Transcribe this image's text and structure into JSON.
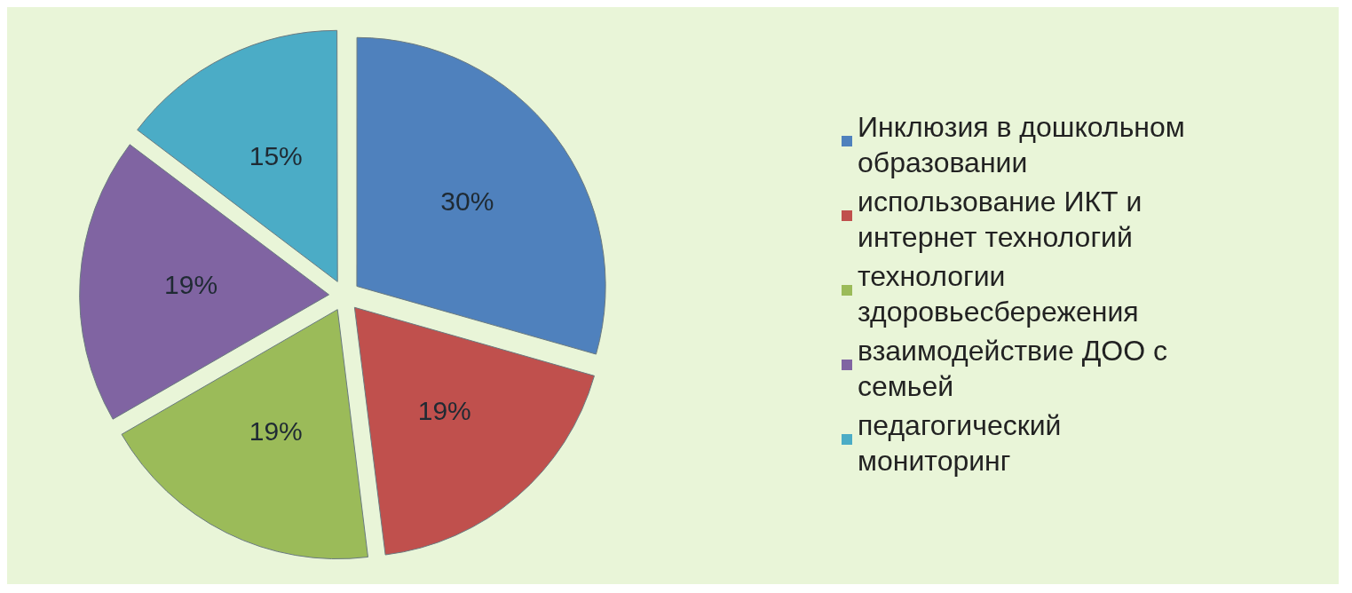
{
  "chart_data": {
    "type": "pie",
    "categories": [
      "Инклюзия в дошкольном образовании",
      "использование ИКТ и интернет технологий",
      "технологии здоровьесбережения",
      "взаимодействие ДОО с семьей",
      "педагогический мониторинг"
    ],
    "values": [
      30,
      19,
      19,
      19,
      15
    ],
    "colors": [
      "#4f81bd",
      "#c0504d",
      "#9bbb59",
      "#8064a2",
      "#4bacc6"
    ],
    "value_labels": [
      "30%",
      "19%",
      "19%",
      "19%",
      "15%"
    ],
    "legend": "right"
  }
}
